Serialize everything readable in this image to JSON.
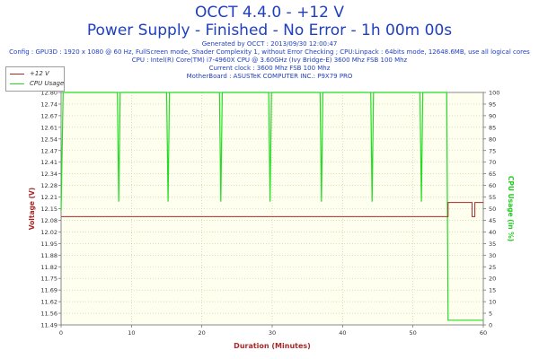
{
  "title": "OCCT 4.4.0 - +12 V",
  "subtitle": "Power Supply - Finished - No Error - 1h 00m 00s",
  "info_lines": [
    "Generated by OCCT : 2013/09/30 12:00:47",
    "Config : GPU3D : 1920 x 1080 @ 60 Hz, FullScreen mode, Shader Complexity 1, without Error Checking ; CPU:Linpack : 64bits mode, 12648.6MB, use all logical cores",
    "CPU : Intel(R) Core(TM) i7-4960X CPU @ 3.60GHz (Ivy Bridge-E) 3600 Mhz FSB 100 Mhz",
    "Current clock : 3600 Mhz FSB 100 Mhz",
    "MotherBoard : ASUSTeK COMPUTER INC.: P9X79 PRO"
  ],
  "colors": {
    "title": "#1f3fbf",
    "voltage": "#a52a2a",
    "cpu": "#22dd22",
    "axis_left": "#a52a2a",
    "axis_right": "#22cc22",
    "plot_bg": "#fffff0",
    "grid": "#c8c8a0"
  },
  "chart_data": {
    "type": "line",
    "xlabel": "Duration (Minutes)",
    "ylabel": "Voltage (V)",
    "y2label": "CPU Usage (in %)",
    "x_ticks": [
      0,
      10,
      20,
      30,
      40,
      50,
      60
    ],
    "y_ticks": [
      "11.49",
      "11.56",
      "11.62",
      "11.69",
      "11.75",
      "11.82",
      "11.88",
      "11.95",
      "12.02",
      "12.08",
      "12.15",
      "12.21",
      "12.28",
      "12.34",
      "12.41",
      "12.47",
      "12.54",
      "12.61",
      "12.67",
      "12.74",
      "12.80"
    ],
    "y2_ticks": [
      0,
      5,
      10,
      15,
      20,
      25,
      30,
      35,
      40,
      45,
      50,
      55,
      60,
      65,
      70,
      75,
      80,
      85,
      90,
      95,
      100
    ],
    "xlim": [
      0,
      60
    ],
    "ylim": [
      11.49,
      12.8
    ],
    "y2lim": [
      0,
      100
    ],
    "grid": true,
    "legend_position": "top-left",
    "series": [
      {
        "name": "+12 V",
        "axis": "left",
        "x": [
          0,
          55,
          55,
          58,
          58.4,
          58.4,
          58.8,
          58.8,
          59.2,
          59.2,
          60
        ],
        "y": [
          12.1,
          12.1,
          12.18,
          12.18,
          12.18,
          12.1,
          12.1,
          12.18,
          12.18,
          12.18,
          12.18
        ]
      },
      {
        "name": "CPU Usage",
        "axis": "right",
        "x": [
          0,
          0.3,
          0.5,
          8,
          8.2,
          8.4,
          15,
          15.2,
          15.4,
          22.5,
          22.7,
          22.9,
          29.5,
          29.7,
          29.9,
          36.8,
          37,
          37.2,
          44,
          44.2,
          44.4,
          51,
          51.2,
          51.4,
          54.8,
          55,
          55.5,
          60
        ],
        "y": [
          49,
          100,
          100,
          100,
          53,
          100,
          100,
          53,
          100,
          100,
          53,
          100,
          100,
          53,
          100,
          100,
          53,
          100,
          100,
          53,
          100,
          100,
          53,
          100,
          100,
          2,
          2,
          2
        ]
      }
    ]
  }
}
